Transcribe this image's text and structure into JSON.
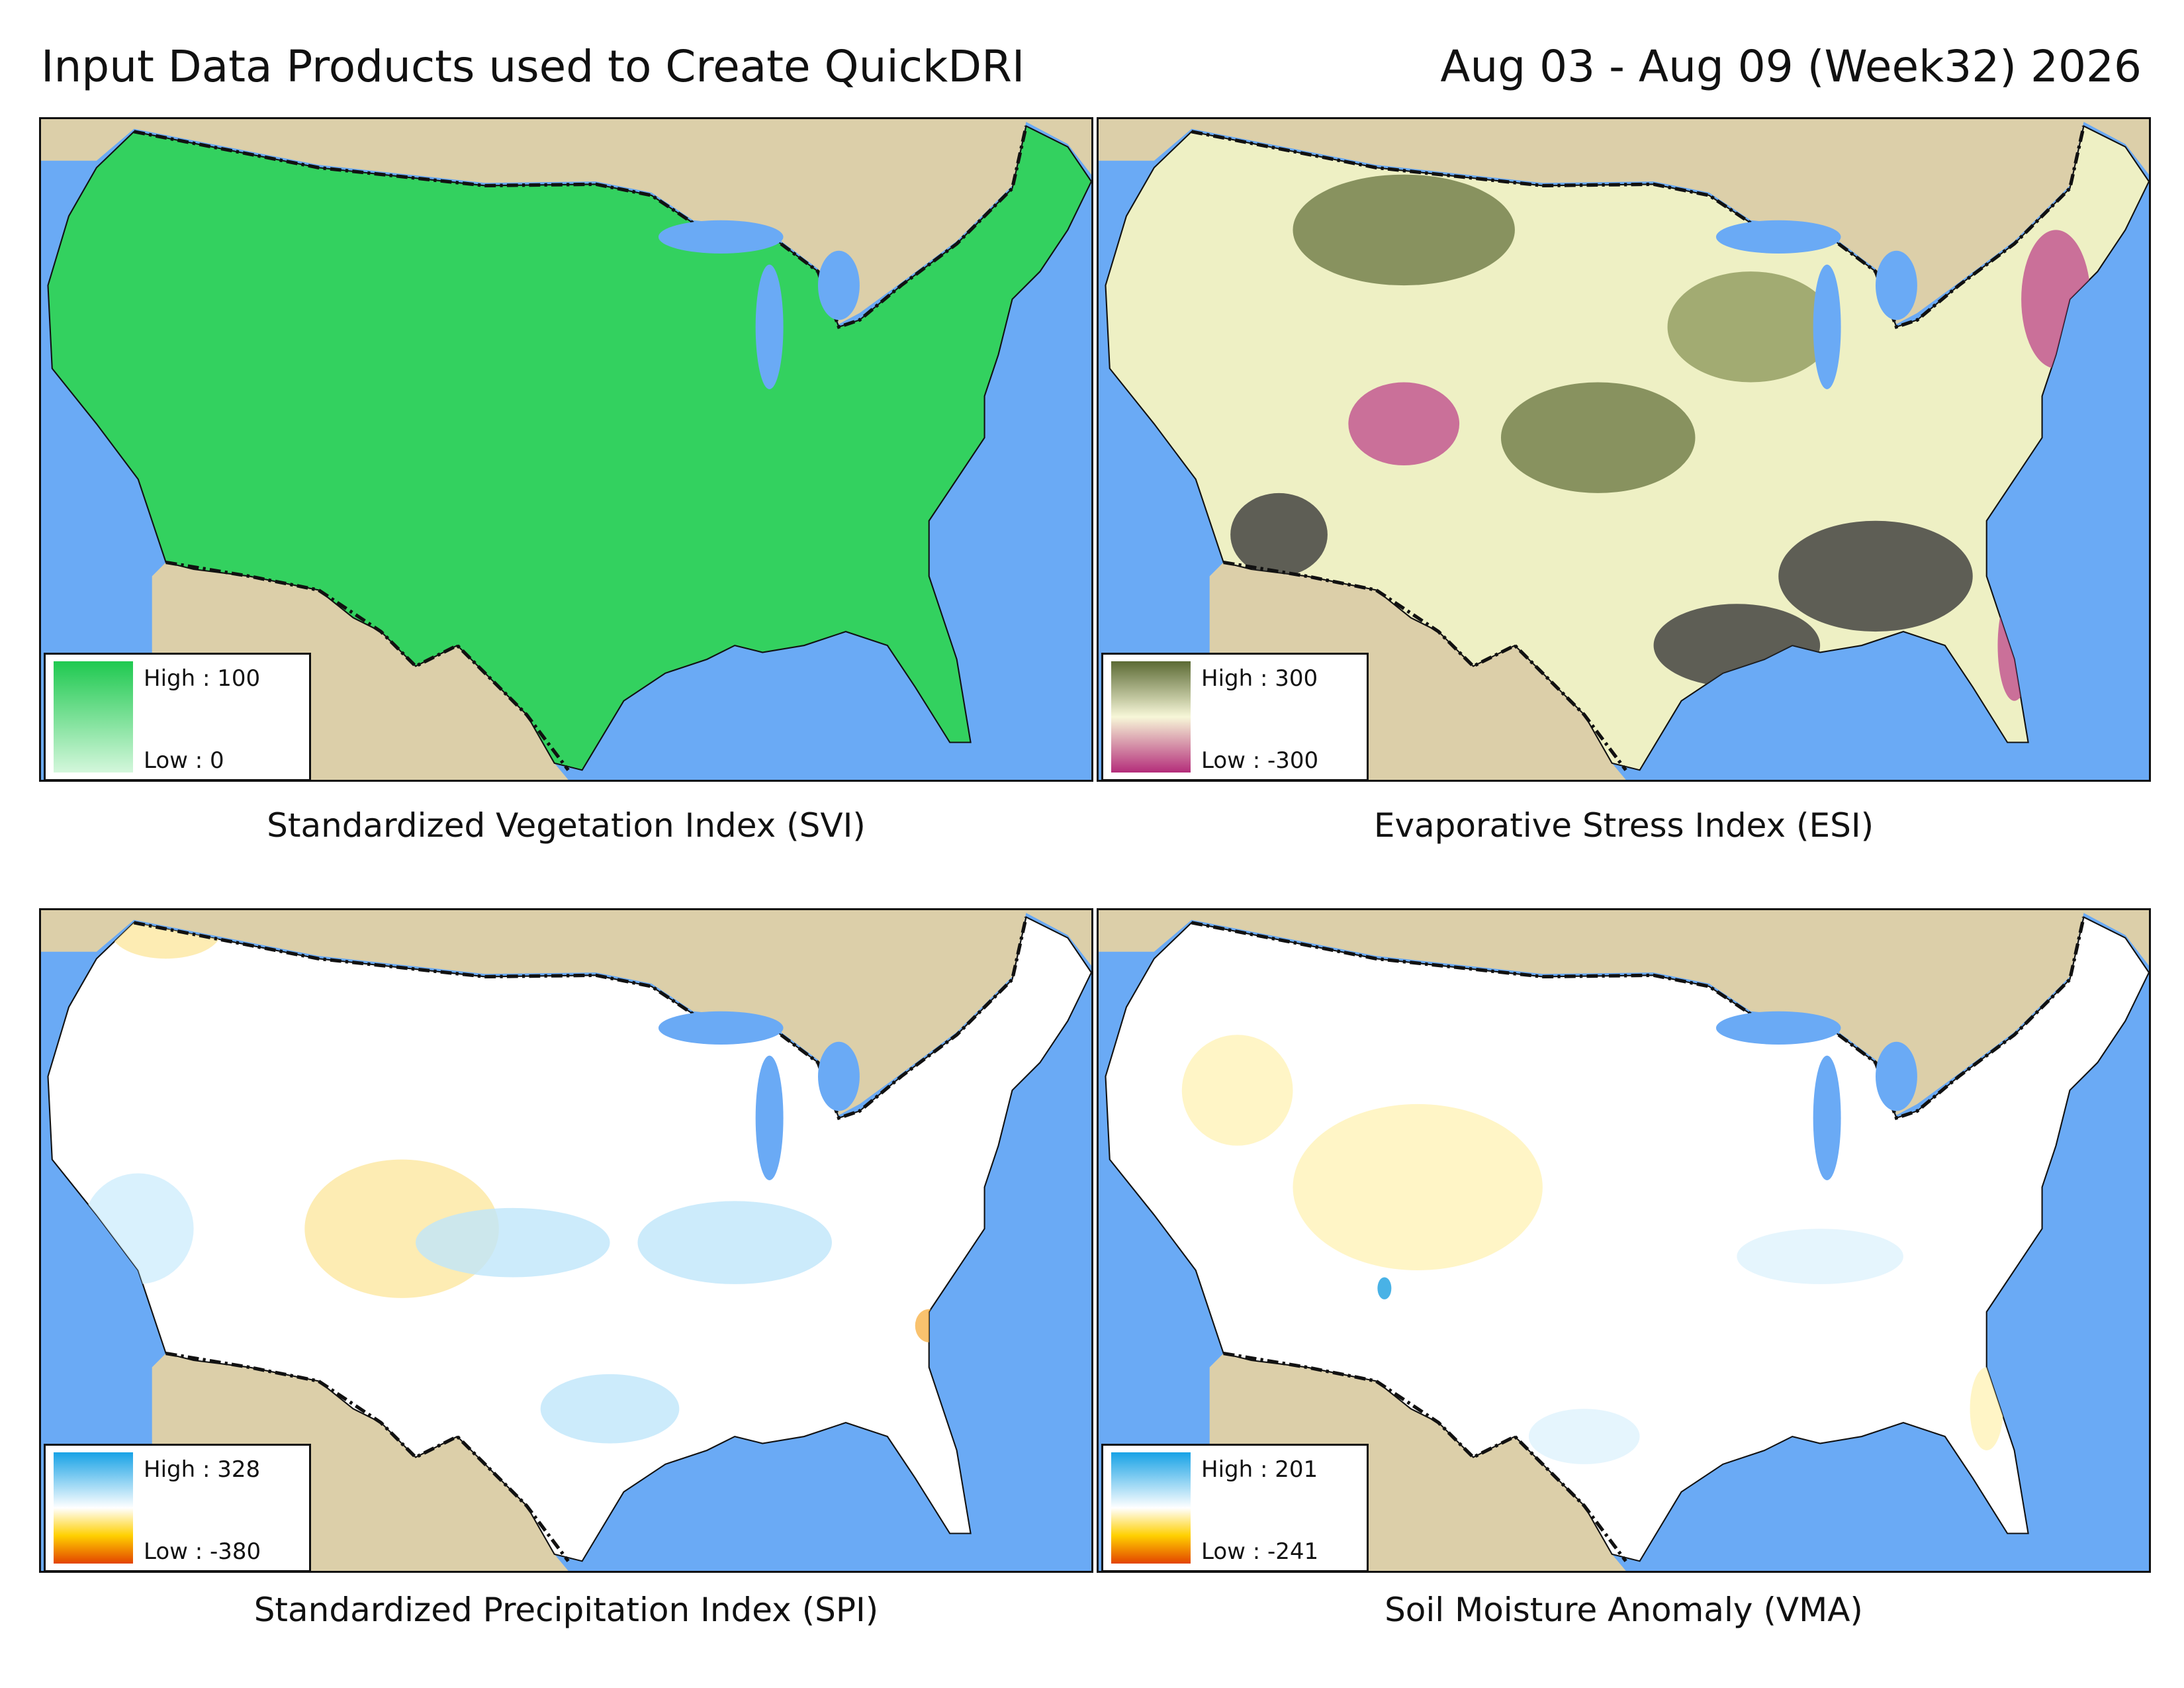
{
  "header": {
    "title": "Input Data Products used to Create QuickDRI",
    "date": "Aug 03 - Aug 09 (Week32) 2026"
  },
  "panels": [
    {
      "caption": "Standardized Vegetation Index (SVI)",
      "legend": {
        "high": "High : 100",
        "low": "Low : 0"
      }
    },
    {
      "caption": "Evaporative Stress Index (ESI)",
      "legend": {
        "high": "High : 300",
        "low": "Low : -300"
      }
    },
    {
      "caption": "Standardized Precipitation Index (SPI)",
      "legend": {
        "high": "High : 328",
        "low": "Low : -380"
      }
    },
    {
      "caption": "Soil Moisture Anomaly (VMA)",
      "legend": {
        "high": "High : 201",
        "low": "Low : -241"
      }
    }
  ]
}
